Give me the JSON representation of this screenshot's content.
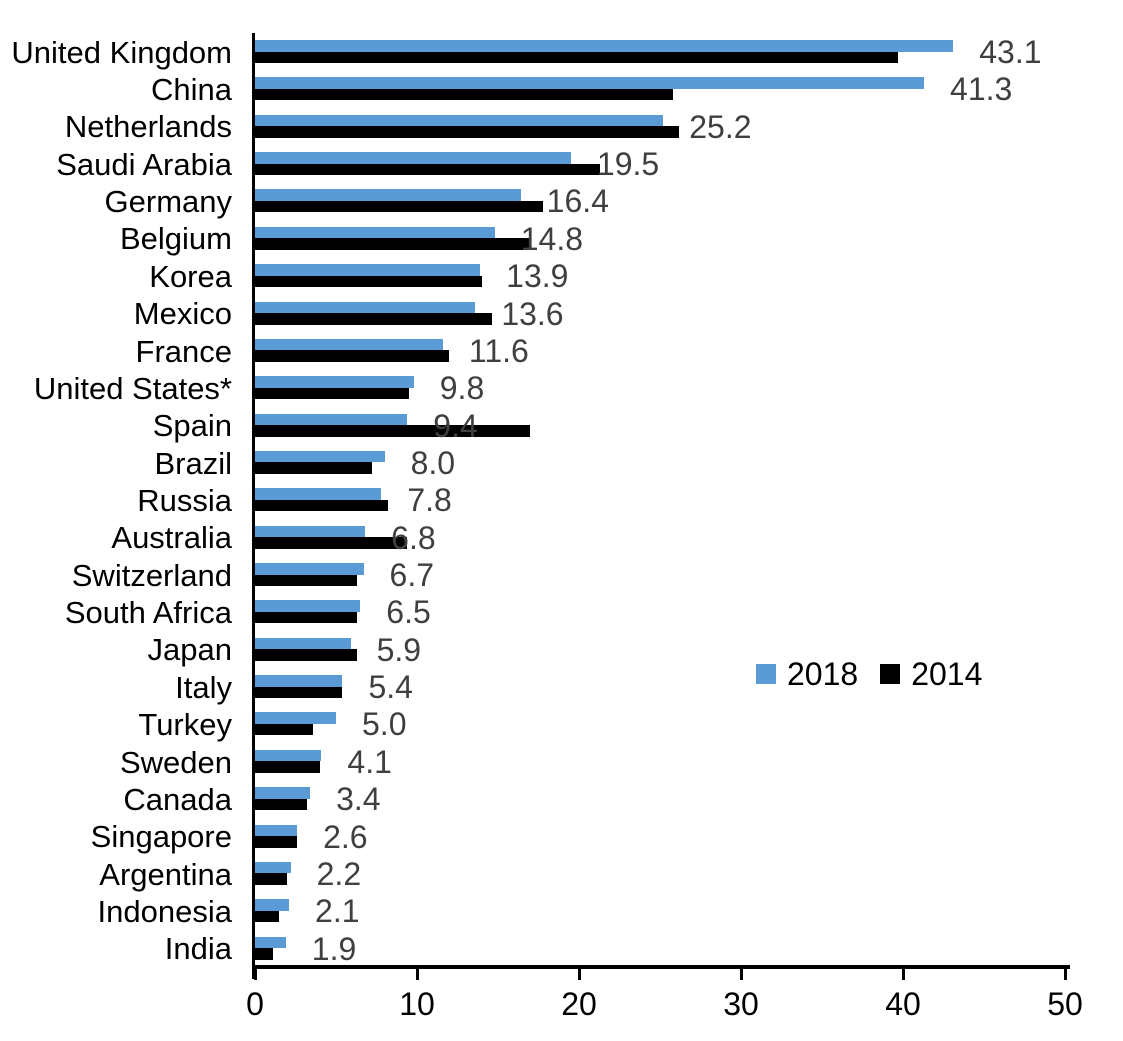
{
  "chart_data": {
    "type": "bar",
    "orientation": "horizontal",
    "title": "",
    "xlabel": "",
    "ylabel": "",
    "xlim": [
      0,
      50
    ],
    "x_ticks": [
      0,
      10,
      20,
      30,
      40,
      50
    ],
    "grid": false,
    "legend_position": "middle-right",
    "categories": [
      "United Kingdom",
      "China",
      "Netherlands",
      "Saudi Arabia",
      "Germany",
      "Belgium",
      "Korea",
      "Mexico",
      "France",
      "United States*",
      "Spain",
      "Brazil",
      "Russia",
      "Australia",
      "Switzerland",
      "South Africa",
      "Japan",
      "Italy",
      "Turkey",
      "Sweden",
      "Canada",
      "Singapore",
      "Argentina",
      "Indonesia",
      "India"
    ],
    "series": [
      {
        "name": "2018",
        "color": "#5B9BD5",
        "values": [
          43.1,
          41.3,
          25.2,
          19.5,
          16.4,
          14.8,
          13.9,
          13.6,
          11.6,
          9.8,
          9.4,
          8.0,
          7.8,
          6.8,
          6.7,
          6.5,
          5.9,
          5.4,
          5.0,
          4.1,
          3.4,
          2.6,
          2.2,
          2.1,
          1.9
        ]
      },
      {
        "name": "2014",
        "color": "#000000",
        "values": [
          39.7,
          25.8,
          26.2,
          21.3,
          17.8,
          17.0,
          14.0,
          14.6,
          12.0,
          9.5,
          17.0,
          7.2,
          8.2,
          9.4,
          6.3,
          6.3,
          6.3,
          5.4,
          3.6,
          4.0,
          3.2,
          2.6,
          2.0,
          1.5,
          1.1
        ]
      }
    ],
    "data_labels": {
      "labeled_series": "2018",
      "values": [
        "43.1",
        "41.3",
        "25.2",
        "19.5",
        "16.4",
        "14.8",
        "13.9",
        "13.6",
        "11.6",
        "9.8",
        "9.4",
        "8.0",
        "7.8",
        "6.8",
        "6.7",
        "6.5",
        "5.9",
        "5.4",
        "5.0",
        "4.1",
        "3.4",
        "2.6",
        "2.2",
        "2.1",
        "1.9"
      ],
      "color": "#3F3F3F"
    }
  }
}
